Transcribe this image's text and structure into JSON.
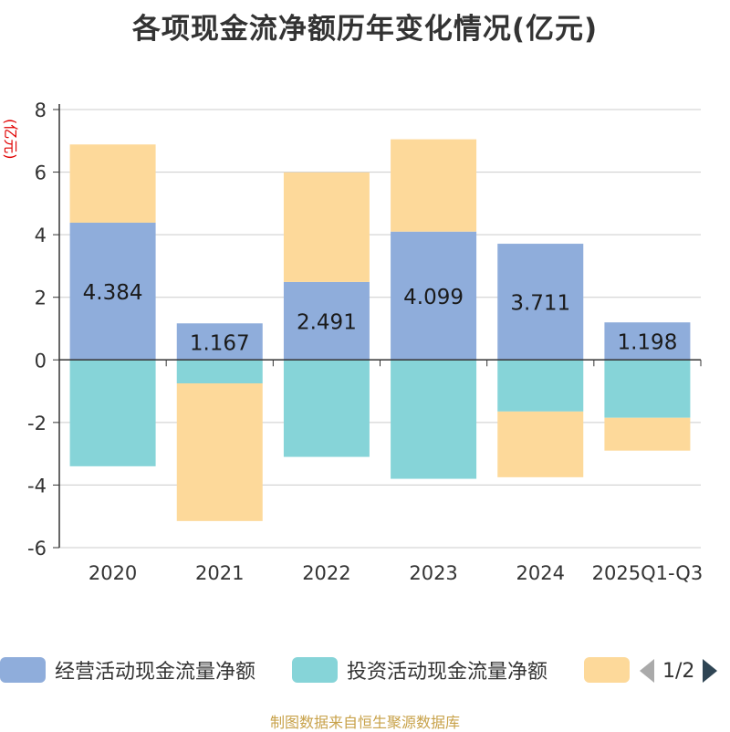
{
  "title": "各项现金流净额历年变化情况(亿元)",
  "source": "制图数据来自恒生聚源数据库",
  "legend_pager": {
    "page": "1/2"
  },
  "chart_data": {
    "type": "bar",
    "stacked": true,
    "ylabel": "(亿元)",
    "ylim": [
      -6,
      8
    ],
    "yticks": [
      -6,
      -4,
      -2,
      0,
      2,
      4,
      6,
      8
    ],
    "grid": true,
    "legend_position": "bottom",
    "categories": [
      "2020",
      "2021",
      "2022",
      "2023",
      "2024",
      "2025Q1-Q3"
    ],
    "series": [
      {
        "name": "经营活动现金流量净额",
        "color": "#8faddb",
        "values": [
          4.384,
          1.167,
          2.491,
          4.099,
          3.711,
          1.198
        ],
        "labels": [
          "4.384",
          "1.167",
          "2.491",
          "4.099",
          "3.711",
          "1.198"
        ]
      },
      {
        "name": "投资活动现金流量净额",
        "color": "#86d4d8",
        "values": [
          -3.4,
          -0.75,
          -3.1,
          -3.8,
          -1.65,
          -1.85
        ]
      },
      {
        "name": "",
        "color": "#fdd99a",
        "values": [
          2.5,
          -4.4,
          3.5,
          2.95,
          -2.1,
          -1.05
        ]
      }
    ]
  }
}
